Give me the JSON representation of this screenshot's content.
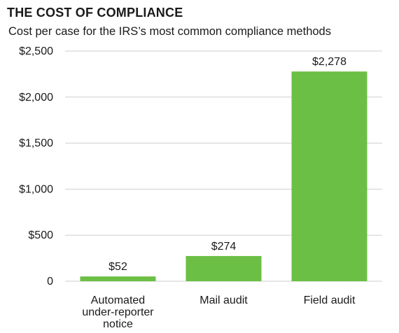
{
  "chart_data": {
    "type": "bar",
    "title": "THE COST OF COMPLIANCE",
    "subtitle": "Cost per case for the IRS’s most common compliance methods",
    "categories": [
      [
        "Automated",
        "under-reporter",
        "notice"
      ],
      [
        "Mail audit"
      ],
      [
        "Field audit"
      ]
    ],
    "values": [
      52,
      274,
      2278
    ],
    "value_labels": [
      "$52",
      "$274",
      "$2,278"
    ],
    "ylim": [
      0,
      2500
    ],
    "yticks": [
      0,
      500,
      1000,
      1500,
      2000,
      2500
    ],
    "ytick_labels": [
      "0",
      "$500",
      "$1,000",
      "$1,500",
      "$2,000",
      "$2,500"
    ],
    "grid": true,
    "bar_color": "#6cbf45",
    "grid_color": "#cfcfcf"
  }
}
